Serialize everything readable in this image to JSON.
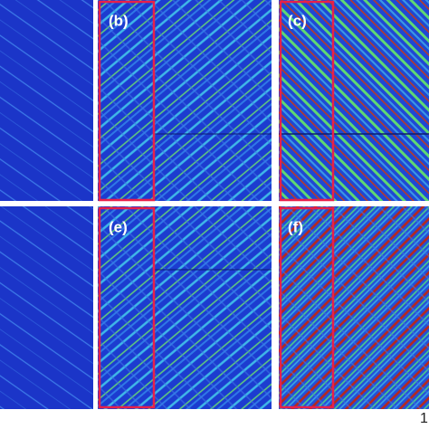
{
  "panels": {
    "labels": [
      "(b)",
      "(c)",
      "(e)",
      "(f)"
    ]
  },
  "corner_text": "1"
}
